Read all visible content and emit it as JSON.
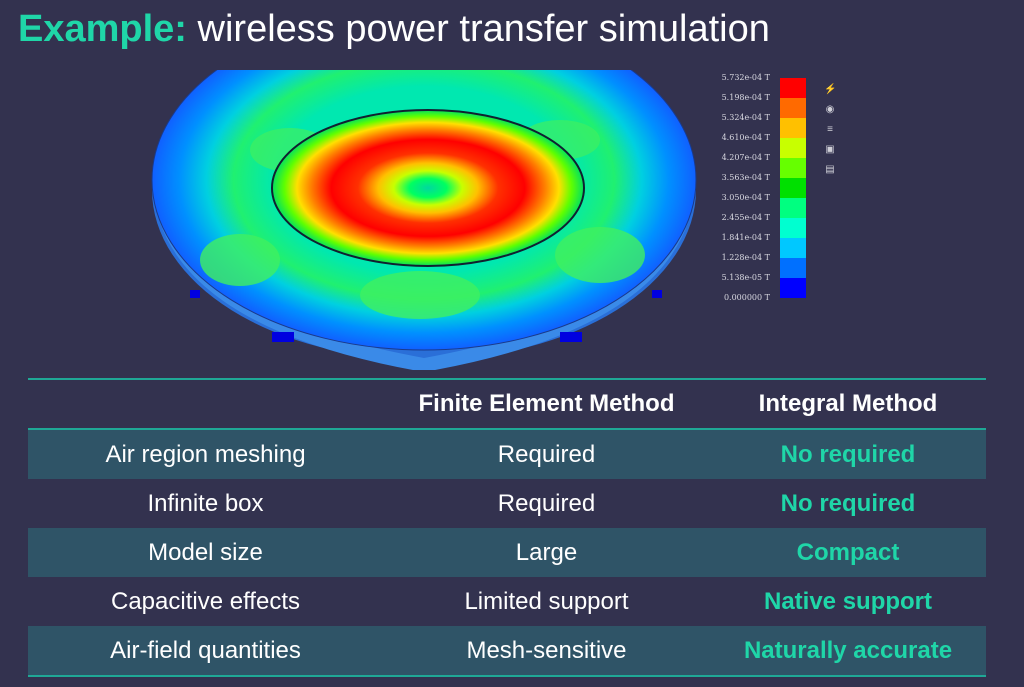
{
  "title": {
    "accent": "Example:",
    "rest": " wireless power transfer simulation"
  },
  "legend": {
    "labels": [
      "5.732e-04 T",
      "5.198e-04 T",
      "5.324e-04 T",
      "4.610e-04 T",
      "4.207e-04 T",
      "3.563e-04 T",
      "3.050e-04 T",
      "2.455e-04 T",
      "1.841e-04 T",
      "1.228e-04 T",
      "5.138e-05 T",
      "0.000000 T"
    ],
    "colors": [
      "#ff0000",
      "#ff6a00",
      "#ffc000",
      "#c8ff00",
      "#66ff00",
      "#00e000",
      "#00ff80",
      "#00ffd0",
      "#00c8ff",
      "#0070ff",
      "#0000ff"
    ]
  },
  "toolbar_icons": [
    "lightning-icon",
    "view-icon",
    "list-icon",
    "lock-icon",
    "save-icon"
  ],
  "table": {
    "headers": [
      "",
      "Finite Element Method",
      "Integral Method"
    ],
    "rows": [
      [
        "Air region meshing",
        "Required",
        "No required"
      ],
      [
        "Infinite box",
        "Required",
        "No required"
      ],
      [
        "Model size",
        "Large",
        "Compact"
      ],
      [
        "Capacitive effects",
        "Limited support",
        "Native support"
      ],
      [
        "Air-field quantities",
        "Mesh-sensitive",
        "Naturally accurate"
      ]
    ]
  }
}
